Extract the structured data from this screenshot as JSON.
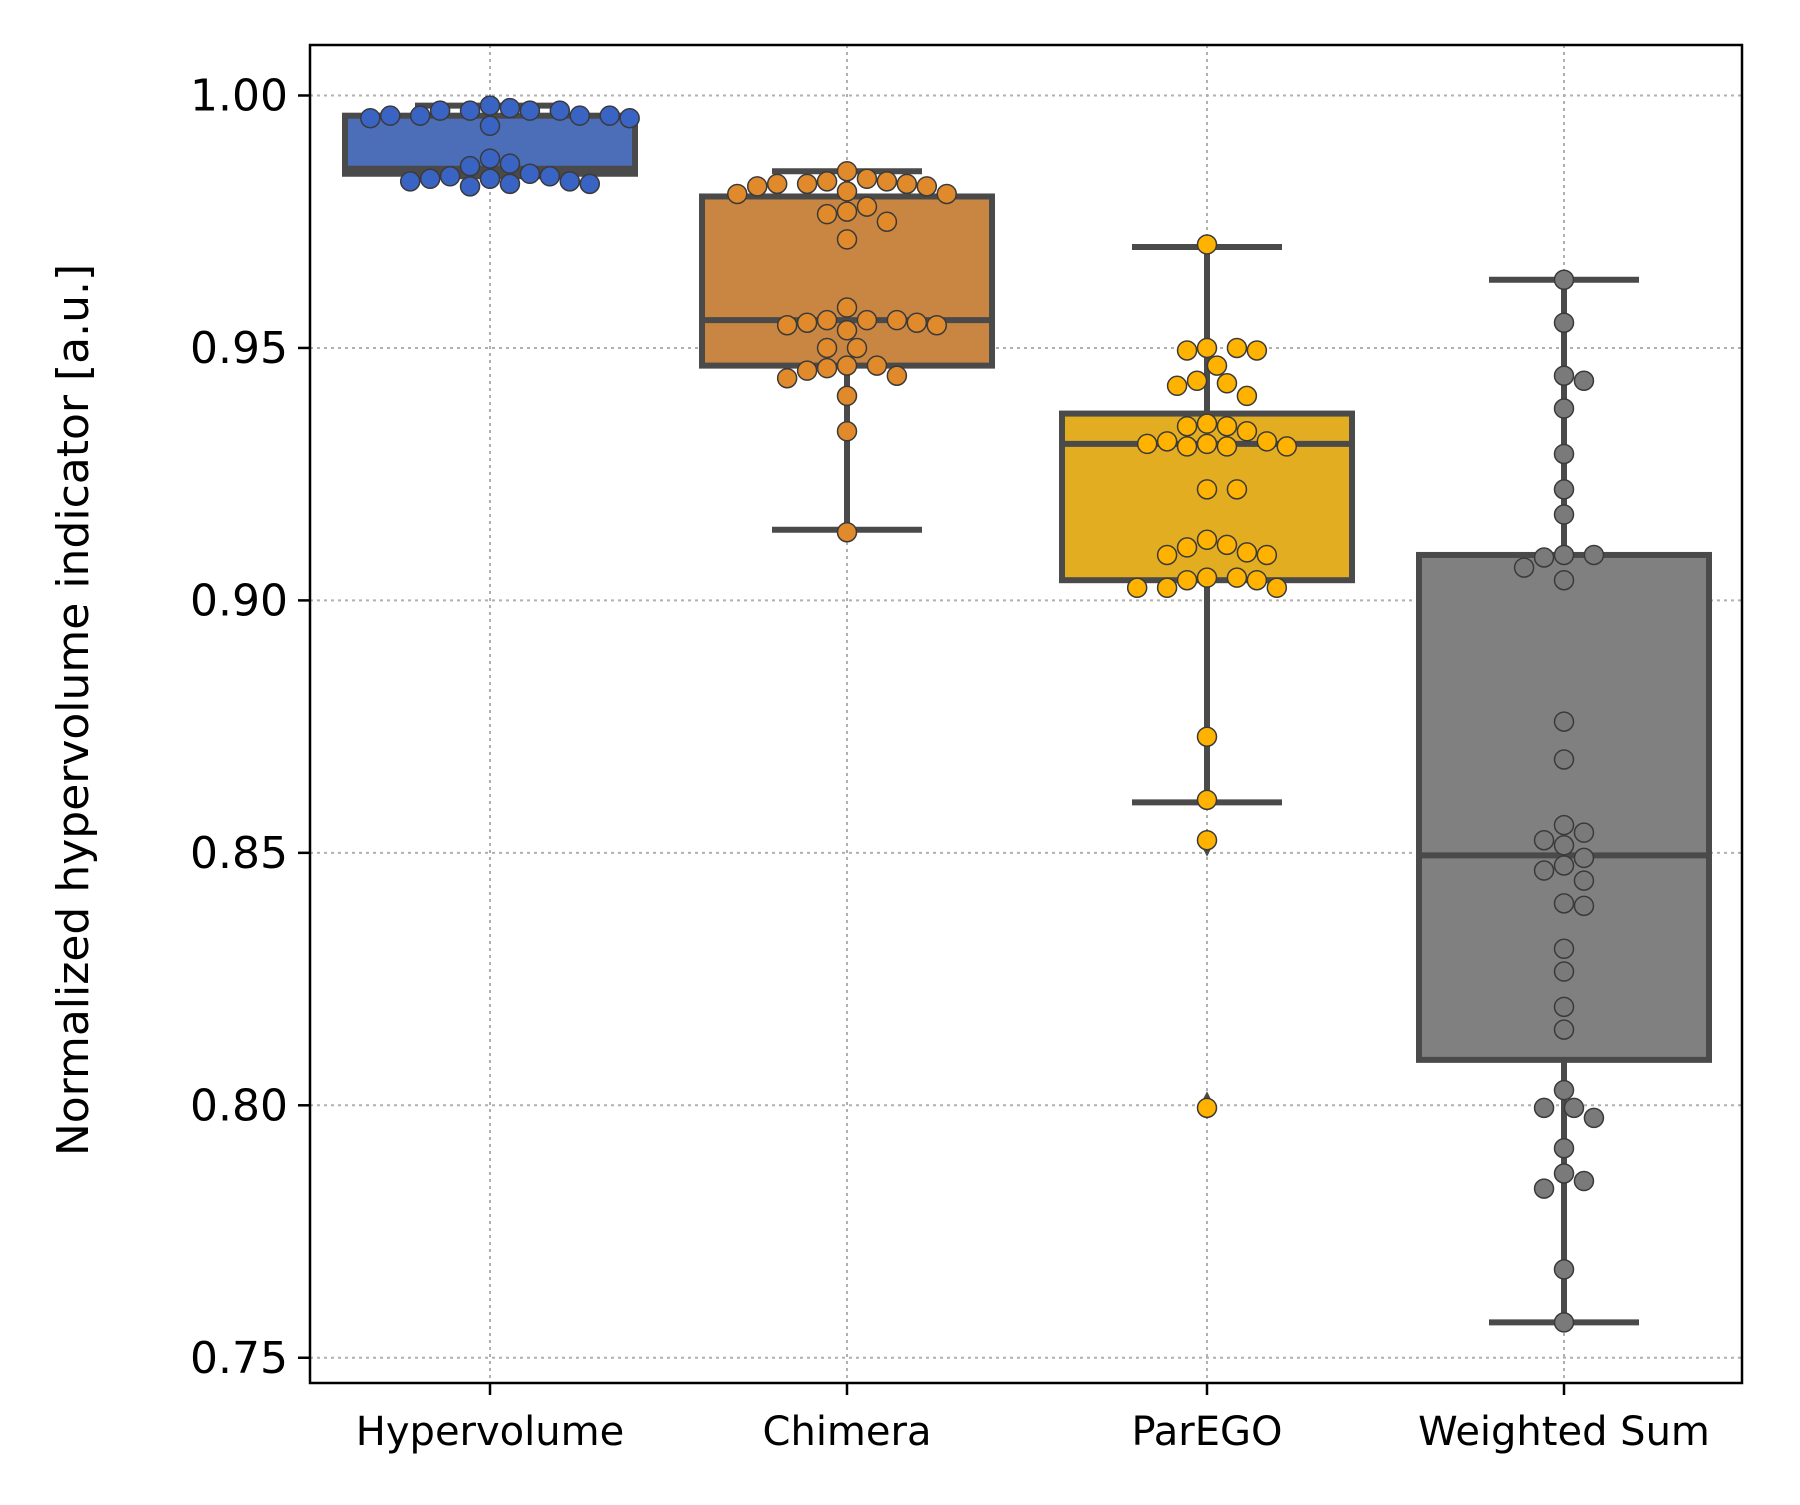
{
  "chart_data": {
    "type": "box",
    "title": "",
    "xlabel": "",
    "ylabel": "Normalized hypervolume indicator [a.u.]",
    "ylim": [
      0.745,
      1.01
    ],
    "yticks": [
      0.75,
      0.8,
      0.85,
      0.9,
      0.95,
      1.0
    ],
    "ytick_labels": [
      "0.75",
      "0.80",
      "0.85",
      "0.90",
      "0.95",
      "1.00"
    ],
    "grid": true,
    "legend": "none",
    "categories": [
      "Hypervolume",
      "Chimera",
      "ParEGO",
      "Weighted Sum"
    ],
    "colors": [
      "#4c6db8",
      "#c98642",
      "#e3ad22",
      "#808080"
    ],
    "point_colors": [
      "#3a64c4",
      "#e08a2c",
      "#ffb300",
      "#7a7a7a"
    ],
    "line_color": "#4a4a4a",
    "series": [
      {
        "category": "Hypervolume",
        "box": {
          "q1": 0.9845,
          "median": 0.9855,
          "q3": 0.996,
          "whisker_low": 0.984,
          "whisker_high": 0.998
        },
        "outliers": [],
        "points": [
          0.998,
          0.997,
          0.997,
          0.996,
          0.996,
          0.9955,
          0.994,
          0.9955,
          0.996,
          0.996,
          0.997,
          0.997,
          0.9975,
          0.986,
          0.9865,
          0.9875,
          0.984,
          0.9835,
          0.983,
          0.9825,
          0.982,
          0.9825,
          0.983,
          0.9835,
          0.984,
          0.9845
        ]
      },
      {
        "category": "Chimera",
        "box": {
          "q1": 0.9465,
          "median": 0.9555,
          "q3": 0.98,
          "whisker_low": 0.914,
          "whisker_high": 0.985
        },
        "outliers": [],
        "points": [
          0.9835,
          0.983,
          0.9825,
          0.981,
          0.982,
          0.9805,
          0.982,
          0.9805,
          0.9825,
          0.9825,
          0.983,
          0.985,
          0.978,
          0.975,
          0.9715,
          0.9765,
          0.977,
          0.9555,
          0.9555,
          0.955,
          0.9545,
          0.9545,
          0.9535,
          0.955,
          0.9555,
          0.958,
          0.95,
          0.95,
          0.9465,
          0.946,
          0.944,
          0.9445,
          0.9455,
          0.9465,
          0.9405,
          0.9335,
          0.9135
        ]
      },
      {
        "category": "ParEGO",
        "box": {
          "q1": 0.904,
          "median": 0.931,
          "q3": 0.937,
          "whisker_low": 0.86,
          "whisker_high": 0.97
        },
        "outliers": [
          0.852,
          0.8
        ],
        "points": [
          0.9705,
          0.95,
          0.95,
          0.9495,
          0.9495,
          0.9465,
          0.9425,
          0.943,
          0.9435,
          0.9405,
          0.935,
          0.9335,
          0.9345,
          0.9345,
          0.9315,
          0.931,
          0.9305,
          0.9305,
          0.9305,
          0.931,
          0.9315,
          0.922,
          0.922,
          0.912,
          0.9105,
          0.909,
          0.909,
          0.9095,
          0.911,
          0.9045,
          0.904,
          0.9025,
          0.9025,
          0.9025,
          0.904,
          0.9045,
          0.873,
          0.8605,
          0.8525,
          0.7995
        ]
      },
      {
        "category": "Weighted Sum",
        "box": {
          "q1": 0.809,
          "median": 0.8495,
          "q3": 0.909,
          "whisker_low": 0.757,
          "whisker_high": 0.9635
        },
        "outliers": [],
        "points": [
          0.9635,
          0.955,
          0.9445,
          0.9435,
          0.938,
          0.929,
          0.922,
          0.917,
          0.909,
          0.9065,
          0.904,
          0.9085,
          0.909,
          0.876,
          0.8685,
          0.8525,
          0.8555,
          0.8515,
          0.854,
          0.849,
          0.8475,
          0.8445,
          0.8465,
          0.84,
          0.8395,
          0.831,
          0.8265,
          0.8195,
          0.815,
          0.803,
          0.7995,
          0.7975,
          0.7995,
          0.7915,
          0.785,
          0.7835,
          0.7865,
          0.7675,
          0.757
        ]
      }
    ]
  }
}
